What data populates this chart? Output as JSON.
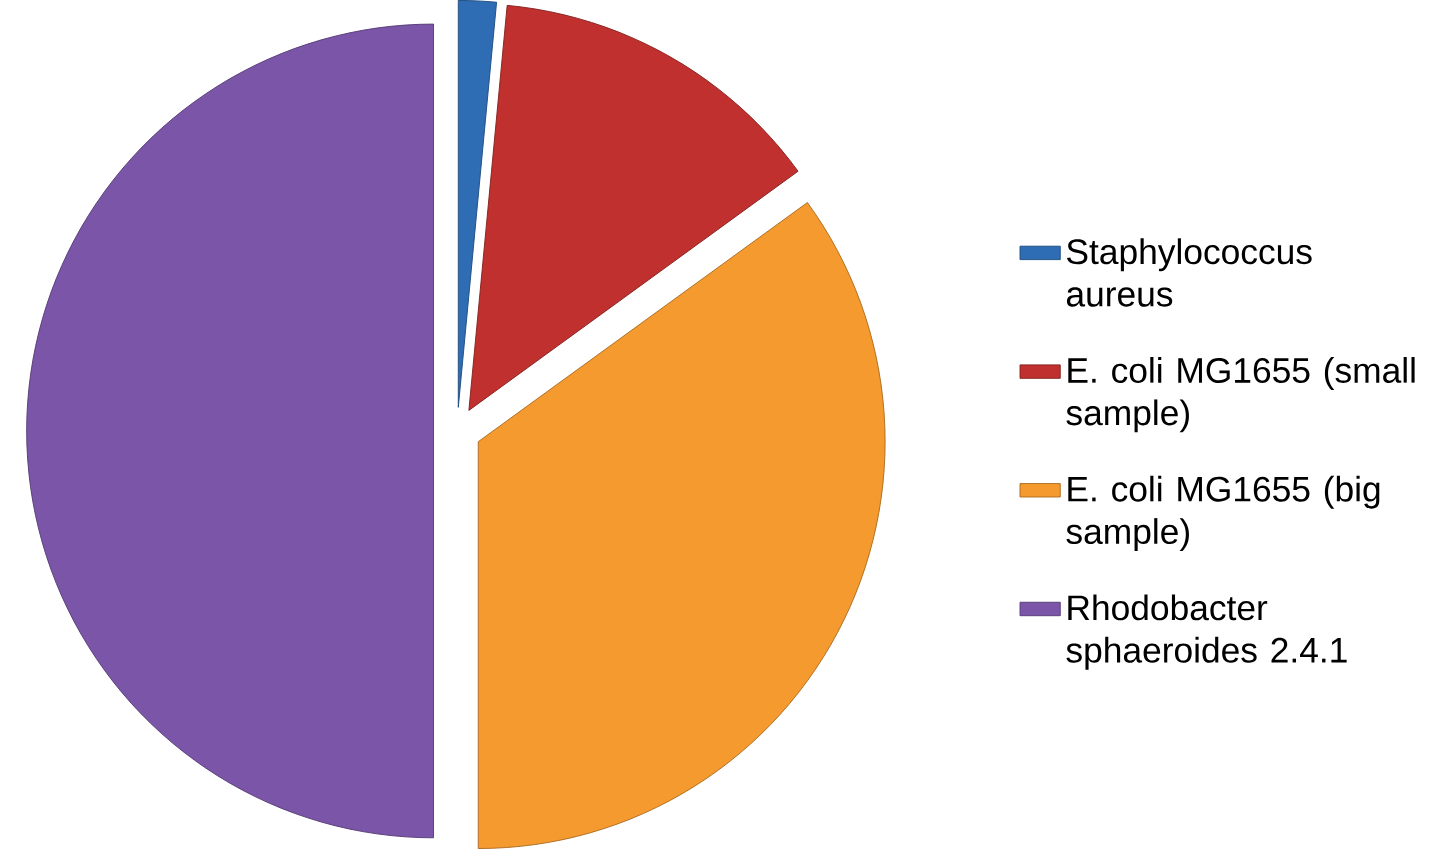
{
  "chart_data": {
    "type": "pie",
    "categories": [
      "Staphylococcus aureus",
      "E. coli MG1655 (small sample)",
      "E. coli MG1655 (big sample)",
      "Rhodobacter sphaeroides 2.4.1"
    ],
    "values": [
      1.5,
      13.5,
      35,
      50
    ],
    "colors": [
      "#2e6db4",
      "#c0302e",
      "#f59a2f",
      "#7b56a8"
    ],
    "legend": "right"
  }
}
